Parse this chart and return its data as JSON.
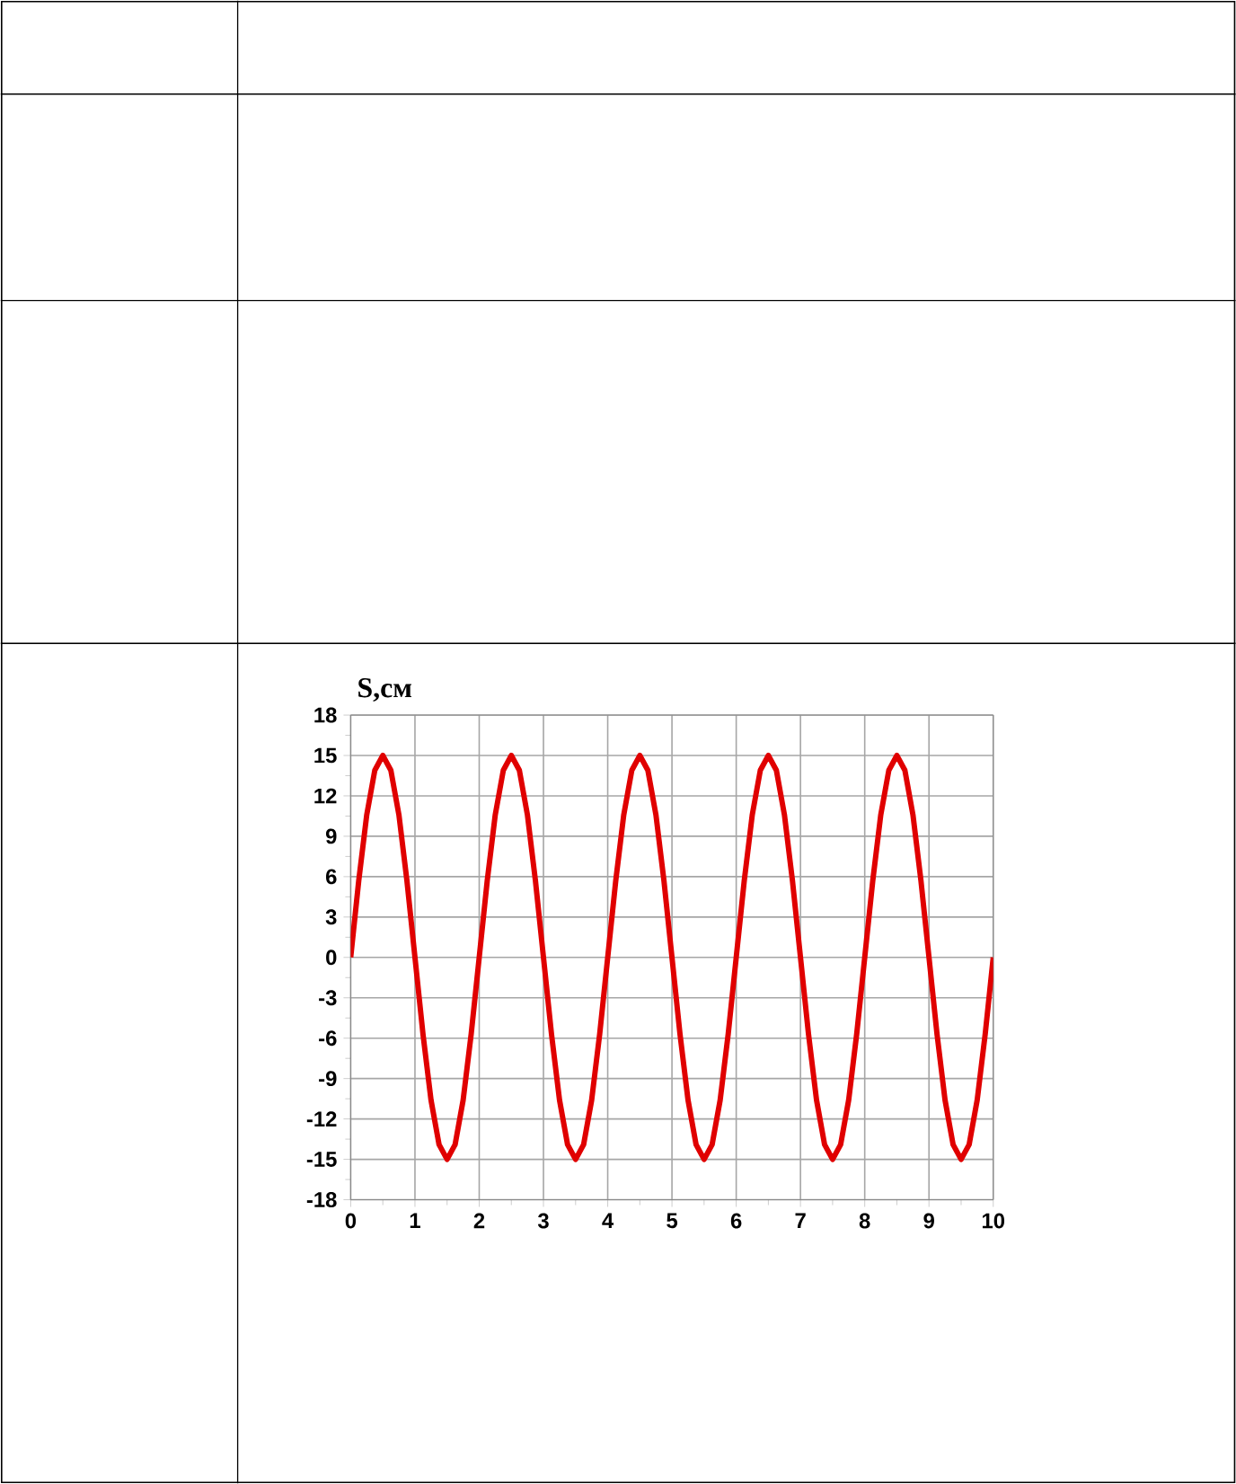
{
  "chart_data": {
    "type": "line",
    "ylabel": "S,см",
    "x": [
      0,
      0.125,
      0.25,
      0.375,
      0.5,
      0.625,
      0.75,
      0.875,
      1,
      1.125,
      1.25,
      1.375,
      1.5,
      1.625,
      1.75,
      1.875,
      2,
      2.125,
      2.25,
      2.375,
      2.5,
      2.625,
      2.75,
      2.875,
      3,
      3.125,
      3.25,
      3.375,
      3.5,
      3.625,
      3.75,
      3.875,
      4,
      4.125,
      4.25,
      4.375,
      4.5,
      4.625,
      4.75,
      4.875,
      5,
      5.125,
      5.25,
      5.375,
      5.5,
      5.625,
      5.75,
      5.875,
      6,
      6.125,
      6.25,
      6.375,
      6.5,
      6.625,
      6.75,
      6.875,
      7,
      7.125,
      7.25,
      7.375,
      7.5,
      7.625,
      7.75,
      7.875,
      8,
      8.125,
      8.25,
      8.375,
      8.5,
      8.625,
      8.75,
      8.875,
      9,
      9.125,
      9.25,
      9.375,
      9.5,
      9.625,
      9.75,
      9.875,
      10
    ],
    "series": [
      {
        "color": "#e00000",
        "values": [
          0,
          5.7,
          10.6,
          13.9,
          15,
          13.9,
          10.6,
          5.7,
          0,
          -5.7,
          -10.6,
          -13.9,
          -15,
          -13.9,
          -10.6,
          -5.7,
          0,
          5.7,
          10.6,
          13.9,
          15,
          13.9,
          10.6,
          5.7,
          0,
          -5.7,
          -10.6,
          -13.9,
          -15,
          -13.9,
          -10.6,
          -5.7,
          0,
          5.7,
          10.6,
          13.9,
          15,
          13.9,
          10.6,
          5.7,
          0,
          -5.7,
          -10.6,
          -13.9,
          -15,
          -13.9,
          -10.6,
          -5.7,
          0,
          5.7,
          10.6,
          13.9,
          15,
          13.9,
          10.6,
          5.7,
          0,
          -5.7,
          -10.6,
          -13.9,
          -15,
          -13.9,
          -10.6,
          -5.7,
          0,
          5.7,
          10.6,
          13.9,
          15,
          13.9,
          10.6,
          5.7,
          0,
          -5.7,
          -10.6,
          -13.9,
          -15,
          -13.9,
          -10.6,
          -5.7,
          0
        ]
      }
    ],
    "xlim": [
      0,
      10
    ],
    "ylim": [
      -18,
      18
    ],
    "xticks": [
      0,
      1,
      2,
      3,
      4,
      5,
      6,
      7,
      8,
      9,
      10
    ],
    "yticks": [
      -18,
      -15,
      -12,
      -9,
      -6,
      -3,
      0,
      3,
      6,
      9,
      12,
      15,
      18
    ],
    "grid": true,
    "marker": "none",
    "line_style": "solid"
  }
}
